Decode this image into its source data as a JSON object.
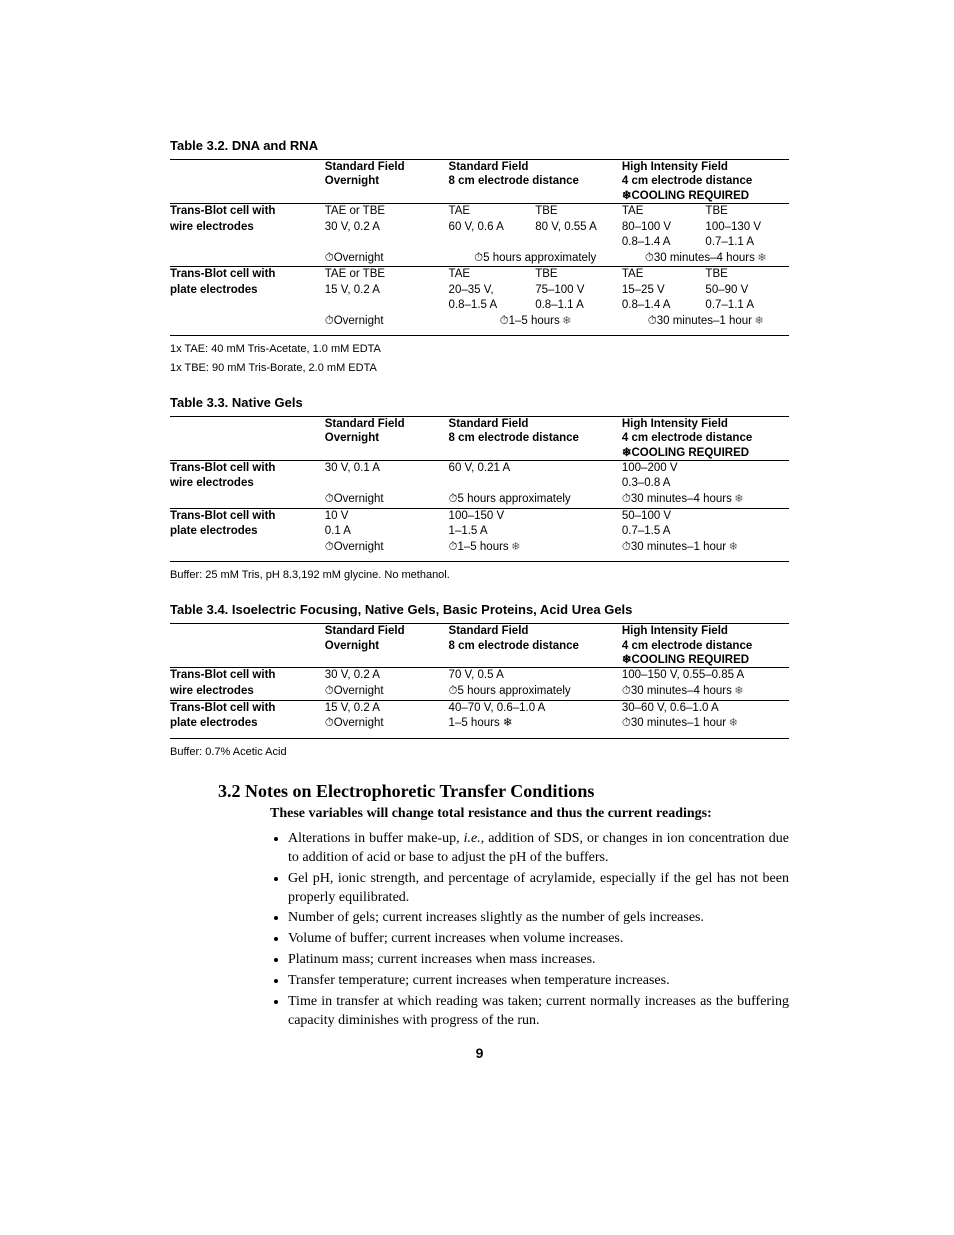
{
  "table32": {
    "title": "Table 3.2. DNA and RNA",
    "head": {
      "c1": "Standard Field\nOvernight",
      "c2": "Standard Field\n8 cm electrode distance",
      "c3a": "High Intensity Field",
      "c3b": "4 cm electrode distance",
      "c3c": "❄COOLING REQUIRED"
    },
    "rows": [
      {
        "label": "Trans-Blot cell with\nwire electrodes",
        "sf_o": "TAE or TBE\n30 V, 0.2 A",
        "sf_o_time": "⏱Overnight",
        "sf8_a": "TAE\n60 V, 0.6 A",
        "sf8_b": "TBE\n80 V, 0.55 A",
        "sf8_time": "⏱5 hours approximately",
        "hi_a": "TAE\n80–100 V\n0.8–1.4 A",
        "hi_b": "TBE\n100–130 V\n0.7–1.1 A",
        "hi_time": "⏱30 minutes–4 hours ❄"
      },
      {
        "label": "Trans-Blot cell with\nplate electrodes",
        "sf_o": "TAE or TBE\n15 V, 0.2 A",
        "sf_o_time": "⏱Overnight",
        "sf8_a": "TAE\n20–35 V,\n0.8–1.5 A",
        "sf8_b": "TBE\n75–100 V\n0.8–1.1 A",
        "sf8_time": "⏱1–5 hours ❄",
        "hi_a": "TAE\n15–25 V\n0.8–1.4 A",
        "hi_b": "TBE\n50–90 V\n0.7–1.1 A",
        "hi_time": "⏱30 minutes–1 hour ❄"
      }
    ],
    "foot1": "1x TAE: 40 mM Tris-Acetate, 1.0 mM EDTA",
    "foot2": "1x TBE: 90 mM Tris-Borate, 2.0 mM EDTA"
  },
  "table33": {
    "title": "Table 3.3. Native Gels",
    "head": {
      "c1": "Standard Field\nOvernight",
      "c2": "Standard Field\n8 cm electrode distance",
      "c3a": "High Intensity Field",
      "c3b": "4 cm electrode distance",
      "c3c": "❄COOLING REQUIRED"
    },
    "rows": [
      {
        "label": "Trans-Blot cell with\nwire electrodes",
        "sf_o": "30 V, 0.1 A",
        "sf_o_time": "⏱Overnight",
        "sf8": "60 V, 0.21 A",
        "sf8_time": "⏱5 hours approximately",
        "hi": "100–200 V\n0.3–0.8 A",
        "hi_time": "⏱30 minutes–4 hours ❄"
      },
      {
        "label": "Trans-Blot cell with\nplate electrodes",
        "sf_o": "10 V\n0.1 A",
        "sf_o_time": "⏱Overnight",
        "sf8": "100–150 V\n1–1.5 A",
        "sf8_time": "⏱1–5 hours ❄",
        "hi": "50–100 V\n0.7–1.5 A",
        "hi_time": "⏱30 minutes–1 hour ❄"
      }
    ],
    "foot": "Buffer: 25 mM Tris, pH 8.3,192 mM glycine. No methanol."
  },
  "table34": {
    "title": "Table 3.4. Isoelectric Focusing, Native Gels, Basic Proteins, Acid Urea Gels",
    "head": {
      "c1": "Standard Field\nOvernight",
      "c2": "Standard Field\n8 cm electrode distance",
      "c3a": "High Intensity Field",
      "c3b": "4 cm electrode distance",
      "c3c": "❄COOLING REQUIRED"
    },
    "rows": [
      {
        "label": "Trans-Blot cell with\nwire electrodes",
        "sf_o": "30 V, 0.2 A",
        "sf_o_time": "⏱Overnight",
        "sf8": "70 V, 0.5 A",
        "sf8_time": "⏱5 hours approximately",
        "hi": "100–150 V, 0.55–0.85 A",
        "hi_time": "⏱30 minutes–4 hours ❄"
      },
      {
        "label": "Trans-Blot cell with\nplate electrodes",
        "sf_o": "15 V, 0.2 A",
        "sf_o_time": "⏱Overnight",
        "sf8": "40–70 V, 0.6–1.0 A",
        "sf8_time": "1–5 hours ❄",
        "hi": "30–60 V, 0.6–1.0 A",
        "hi_time": "⏱30 minutes–1 hour ❄"
      }
    ],
    "foot": "Buffer: 0.7% Acetic Acid"
  },
  "section": {
    "heading": "3.2  Notes on Electrophoretic Transfer Conditions",
    "sub": "These variables will change total resistance and thus the current readings:",
    "items": [
      "Alterations in buffer make-up, <i>i.e.</i>, addition of SDS, or changes in ion concentration due to addition of acid or base to adjust the pH of the buffers.",
      "Gel pH, ionic strength, and percentage of acrylamide, especially if the gel has not been properly equilibrated.",
      "Number of gels; current increases slightly as the number of gels increases.",
      "Volume of buffer; current increases when volume increases.",
      "Platinum mass; current increases when mass increases.",
      "Transfer temperature; current increases when temperature increases.",
      "Time in transfer at which reading was taken; current normally increases as the buffering capacity diminishes with progress of the run."
    ]
  },
  "pagenum": "9"
}
